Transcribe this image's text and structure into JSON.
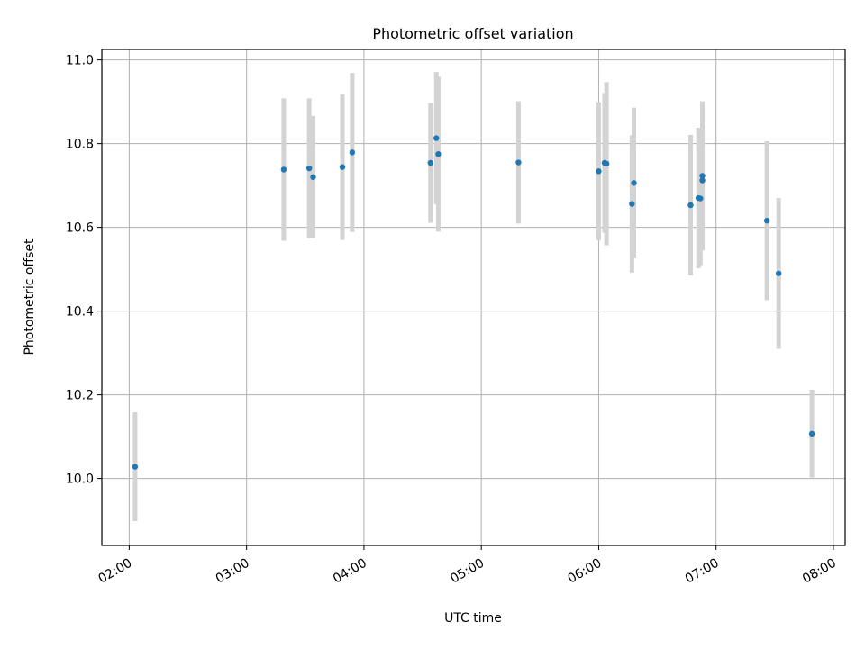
{
  "chart_data": {
    "type": "scatter",
    "title": "Photometric offset variation",
    "xlabel": "UTC time",
    "ylabel": "Photometric offset",
    "x_ticks": [
      "02:00",
      "03:00",
      "04:00",
      "05:00",
      "06:00",
      "07:00",
      "08:00"
    ],
    "y_ticks": [
      "10.0",
      "10.2",
      "10.4",
      "10.6",
      "10.8",
      "11.0"
    ],
    "xlim": [
      "01:46",
      "08:06"
    ],
    "ylim": [
      9.84,
      11.025
    ],
    "grid": true,
    "colors": {
      "point": "#1f77b4",
      "errorbar": "#d3d3d3",
      "grid": "#b0b0b0"
    },
    "series": [
      {
        "points": [
          {
            "time": "02:03",
            "value": 10.028,
            "err": 0.13
          },
          {
            "time": "03:19",
            "value": 10.738,
            "err": 0.17
          },
          {
            "time": "03:32",
            "value": 10.741,
            "err": 0.167
          },
          {
            "time": "03:34",
            "value": 10.72,
            "err": 0.146
          },
          {
            "time": "03:49",
            "value": 10.744,
            "err": 0.174
          },
          {
            "time": "03:54",
            "value": 10.779,
            "err": 0.19
          },
          {
            "time": "04:34",
            "value": 10.754,
            "err": 0.143
          },
          {
            "time": "04:37",
            "value": 10.813,
            "err": 0.158
          },
          {
            "time": "04:38",
            "value": 10.775,
            "err": 0.185
          },
          {
            "time": "05:19",
            "value": 10.755,
            "err": 0.146
          },
          {
            "time": "06:00",
            "value": 10.734,
            "err": 0.165
          },
          {
            "time": "06:03",
            "value": 10.754,
            "err": 0.167
          },
          {
            "time": "06:04",
            "value": 10.752,
            "err": 0.195
          },
          {
            "time": "06:17",
            "value": 10.656,
            "err": 0.164
          },
          {
            "time": "06:18",
            "value": 10.706,
            "err": 0.18
          },
          {
            "time": "06:47",
            "value": 10.653,
            "err": 0.168
          },
          {
            "time": "06:51",
            "value": 10.67,
            "err": 0.168
          },
          {
            "time": "06:52",
            "value": 10.669,
            "err": 0.16
          },
          {
            "time": "06:53",
            "value": 10.723,
            "err": 0.178
          },
          {
            "time": "06:53",
            "value": 10.712,
            "err": 0.165
          },
          {
            "time": "07:26",
            "value": 10.616,
            "err": 0.19
          },
          {
            "time": "07:32",
            "value": 10.49,
            "err": 0.18
          },
          {
            "time": "07:49",
            "value": 10.107,
            "err": 0.105
          }
        ]
      }
    ]
  }
}
